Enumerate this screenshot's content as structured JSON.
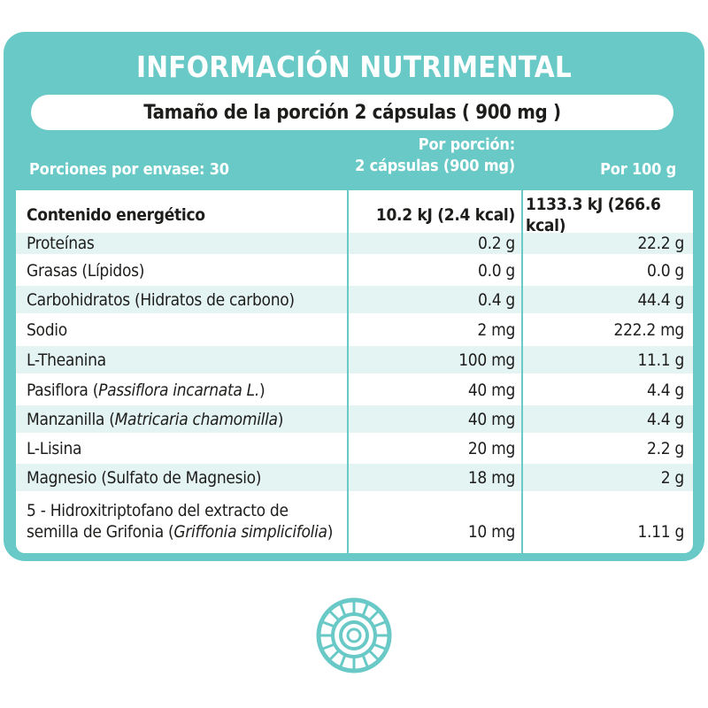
{
  "title": "INFORMACIÓN NUTRIMENTAL",
  "serving_size": "Tamaño de la porción 2 cápsulas ( 900 mg )",
  "header": {
    "servings_per_container": "Porciones por envase: 30",
    "per_serving_line1": "Por porción:",
    "per_serving_line2": "2 cápsulas (900 mg)",
    "per_100g": "Por 100 g"
  },
  "rows": [
    {
      "name": "Contenido energético",
      "per_serving": "10.2 kJ (2.4 kcal)",
      "per_100g": "1133.3 kJ (266.6 kcal)"
    },
    {
      "name": "Proteínas",
      "per_serving": "0.2 g",
      "per_100g": "22.2 g"
    },
    {
      "name": "Grasas (Lípidos)",
      "per_serving": "0.0 g",
      "per_100g": "0.0 g"
    },
    {
      "name": "Carbohidratos (Hidratos de carbono)",
      "per_serving": "0.4 g",
      "per_100g": "44.4 g"
    },
    {
      "name": "Sodio",
      "per_serving": "2 mg",
      "per_100g": "222.2 mg"
    },
    {
      "name": "L-Theanina",
      "per_serving": "100 mg",
      "per_100g": "11.1 g"
    },
    {
      "name_prefix": "Pasiflora (",
      "name_sci": "Passiflora incarnata L.",
      "name_suffix": ")",
      "per_serving": "40 mg",
      "per_100g": "4.4 g"
    },
    {
      "name_prefix": "Manzanilla (",
      "name_sci": "Matricaria chamomilla",
      "name_suffix": ")",
      "per_serving": "40 mg",
      "per_100g": "4.4 g"
    },
    {
      "name": "L-Lisina",
      "per_serving": "20 mg",
      "per_100g": "2.2 g"
    },
    {
      "name": "Magnesio (Sulfato de Magnesio)",
      "per_serving": "18 mg",
      "per_100g": "2 g"
    },
    {
      "name_line1": "5 - Hidroxitriptofano del extracto de",
      "name_prefix": "semilla de Grifonia (",
      "name_sci": "Griffonia simplicifolia",
      "name_suffix": ")",
      "per_serving": "10 mg",
      "per_100g": "1.11 g"
    }
  ],
  "colors": {
    "accent": "#69c9c6",
    "row_alt": "#e4f4f3",
    "text": "#1d1d1b"
  },
  "logo_icon": "concentric-circle-logo-icon"
}
